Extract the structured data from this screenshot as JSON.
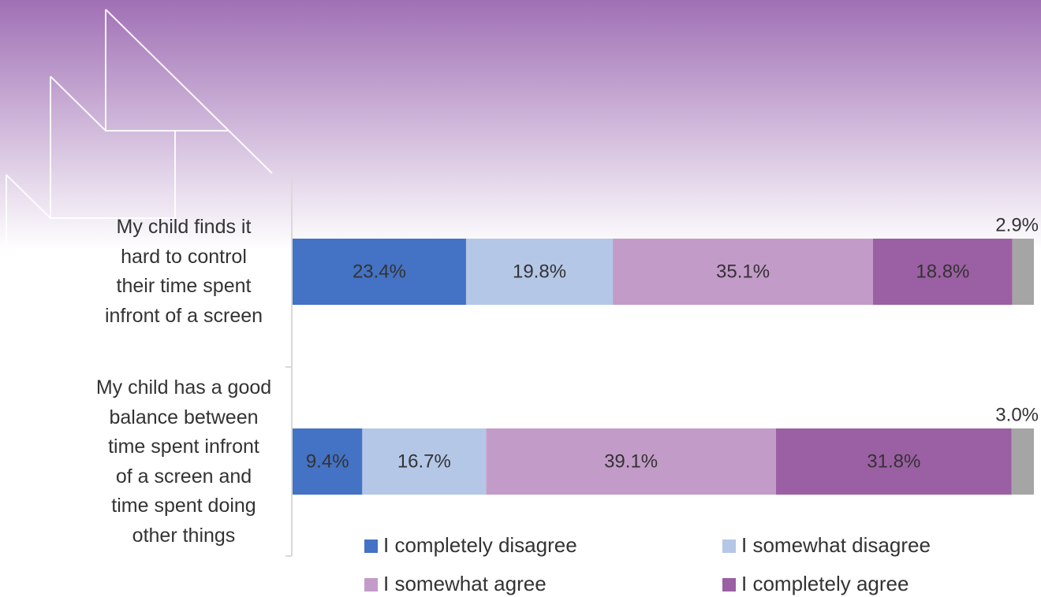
{
  "chart_data": {
    "type": "stacked-bar-horizontal",
    "categories": [
      "My child finds it\nhard to control\ntheir time spent\ninfront of a screen",
      "My child has a good\nbalance between\ntime spent infront\nof a screen and\ntime spent doing\nother things"
    ],
    "series": [
      {
        "name": "I completely disagree",
        "color": "#4472c4",
        "values": [
          23.4,
          9.4
        ],
        "value_labels": [
          "23.4%",
          "9.4%"
        ]
      },
      {
        "name": "I somewhat disagree",
        "color": "#b4c7e7",
        "values": [
          19.8,
          16.7
        ],
        "value_labels": [
          "19.8%",
          "16.7%"
        ]
      },
      {
        "name": "I somewhat agree",
        "color": "#c39bc9",
        "values": [
          35.1,
          39.1
        ],
        "value_labels": [
          "35.1%",
          "39.1%"
        ]
      },
      {
        "name": "I completely agree",
        "color": "#9b5fa3",
        "values": [
          18.8,
          31.8
        ],
        "value_labels": [
          "18.8%",
          "31.8%"
        ]
      },
      {
        "color": "#a5a5a5",
        "values": [
          2.9,
          3.0
        ],
        "value_labels": [
          "2.9%",
          "3.0%"
        ]
      }
    ],
    "xlim": [
      0,
      100
    ]
  }
}
